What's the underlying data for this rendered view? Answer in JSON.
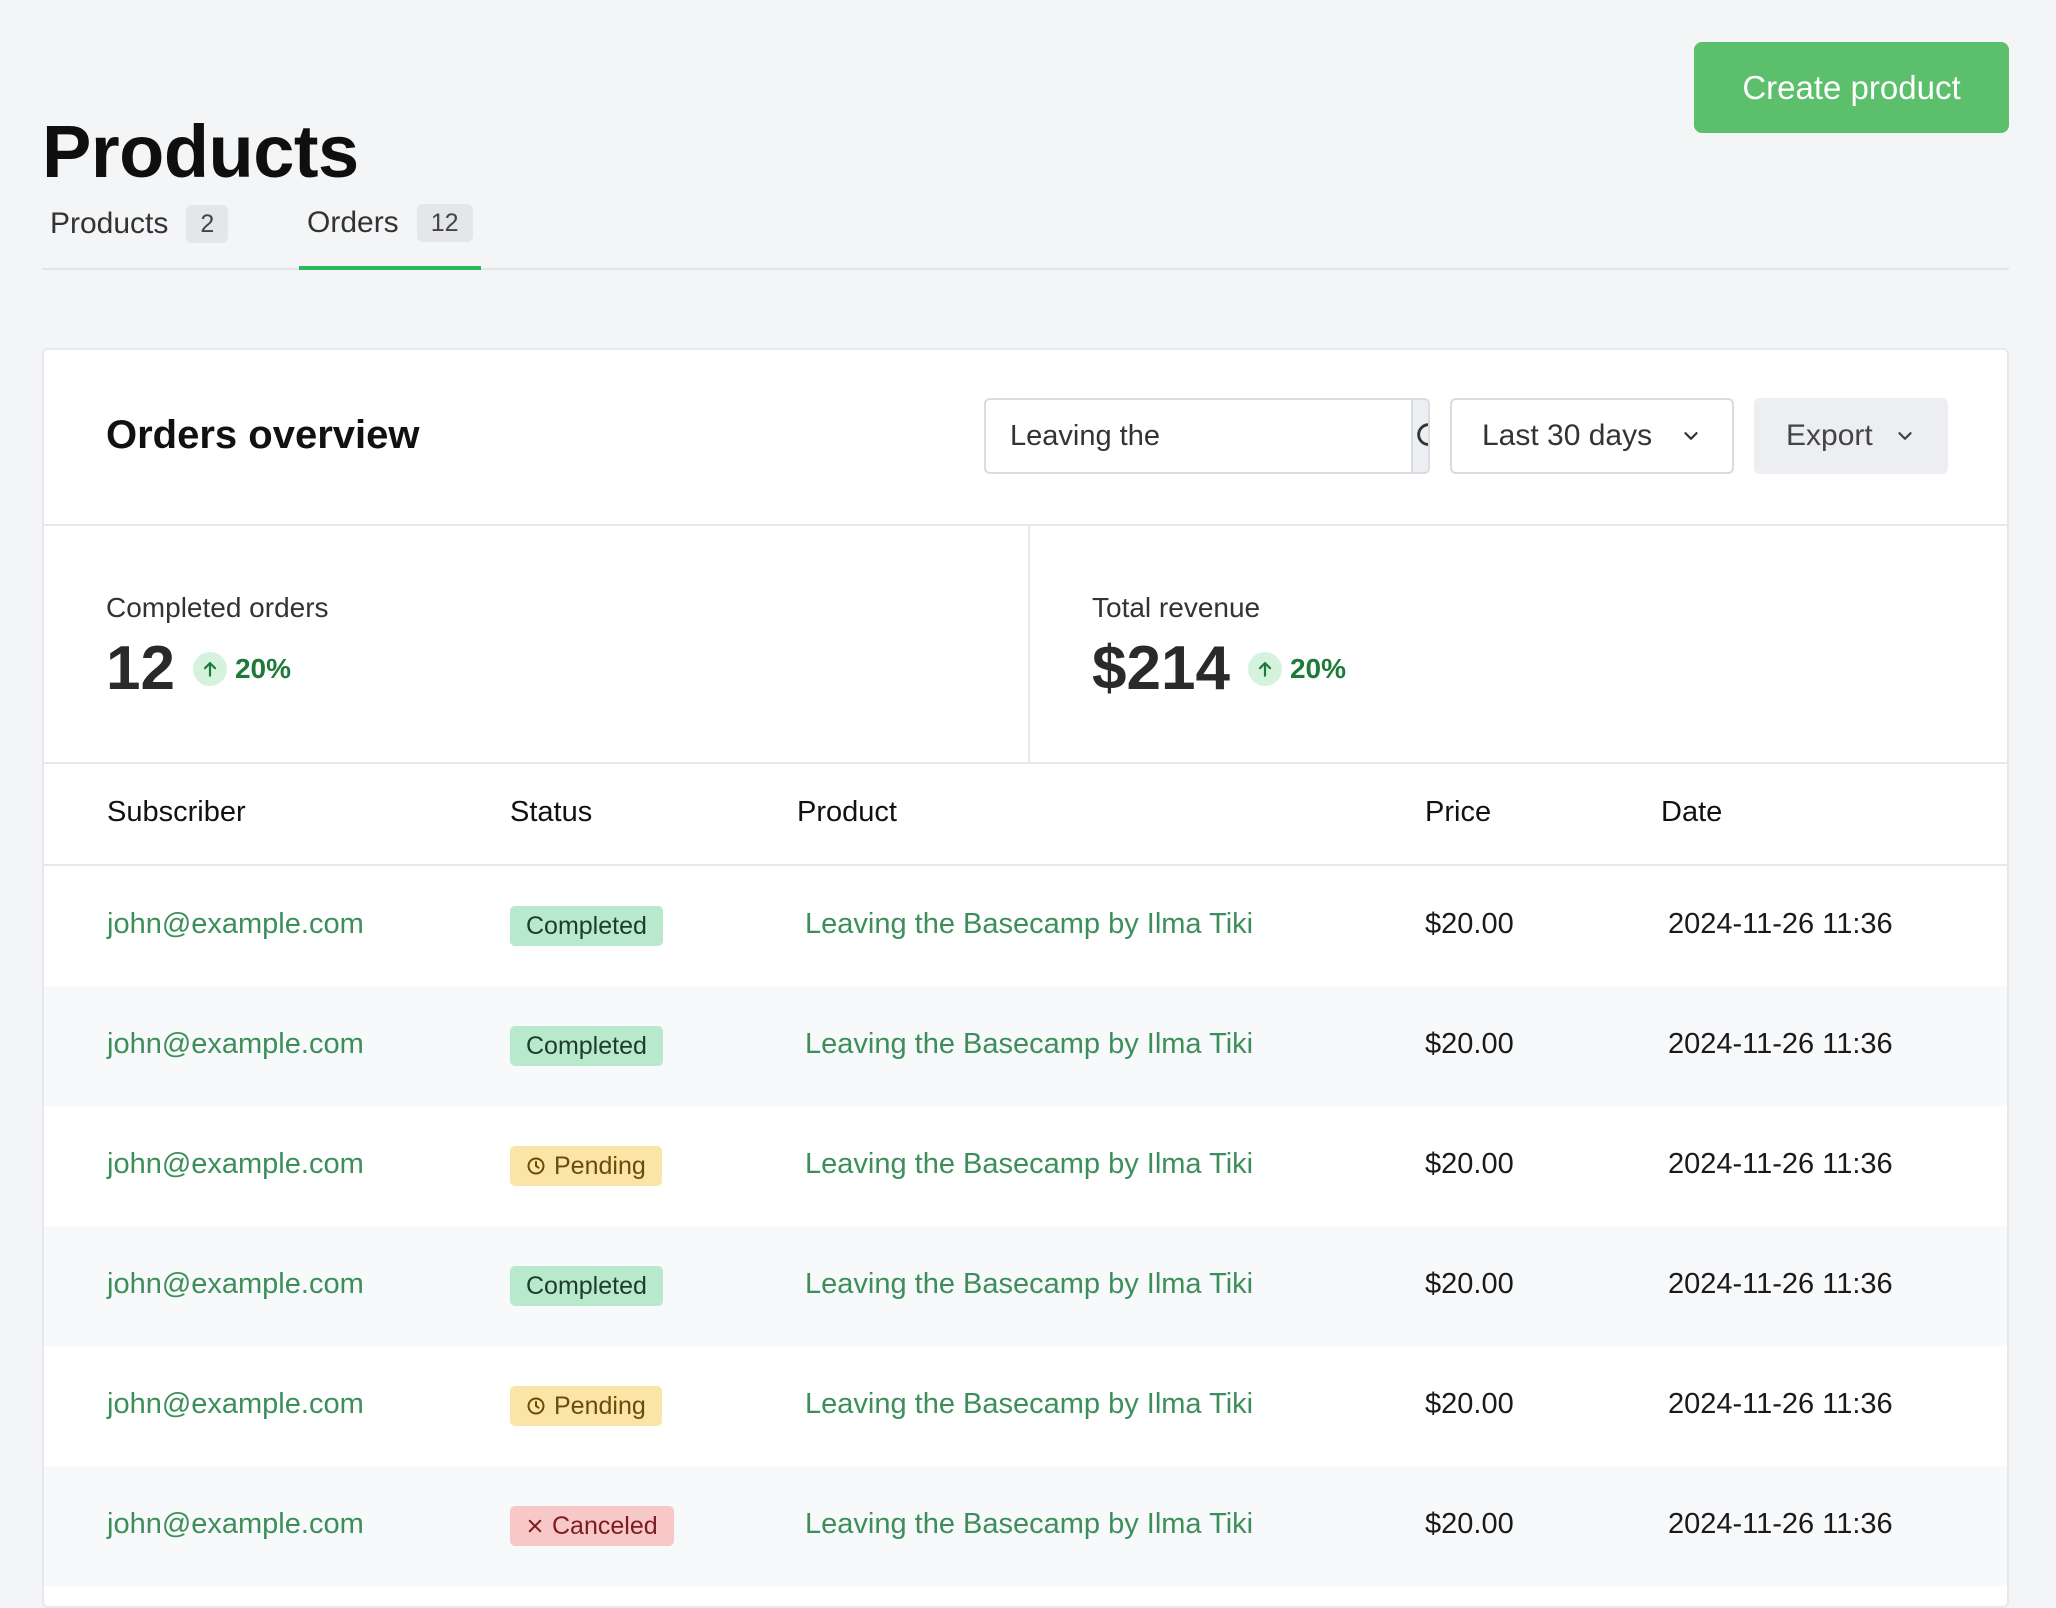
{
  "page": {
    "title": "Products"
  },
  "actions": {
    "create_label": "Create product"
  },
  "tabs": [
    {
      "label": "Products",
      "count": "2"
    },
    {
      "label": "Orders",
      "count": "12"
    }
  ],
  "overview": {
    "title": "Orders overview",
    "search": {
      "value": "Leaving the"
    },
    "range": {
      "selected": "Last 30 days"
    },
    "export_label": "Export"
  },
  "stats": {
    "completed": {
      "label": "Completed orders",
      "value": "12",
      "delta": "20%"
    },
    "revenue": {
      "label": "Total revenue",
      "value": "$214",
      "delta": "20%"
    }
  },
  "table": {
    "columns": {
      "subscriber": "Subscriber",
      "status": "Status",
      "product": "Product",
      "price": "Price",
      "date": "Date"
    },
    "rows": [
      {
        "subscriber": "john@example.com",
        "status": "Completed",
        "status_kind": "completed",
        "product": "Leaving the Basecamp by Ilma Tiki",
        "price": "$20.00",
        "date": "2024-11-26 11:36"
      },
      {
        "subscriber": "john@example.com",
        "status": "Completed",
        "status_kind": "completed",
        "product": "Leaving the Basecamp by Ilma Tiki",
        "price": "$20.00",
        "date": "2024-11-26 11:36"
      },
      {
        "subscriber": "john@example.com",
        "status": "Pending",
        "status_kind": "pending",
        "product": "Leaving the Basecamp by Ilma Tiki",
        "price": "$20.00",
        "date": "2024-11-26 11:36"
      },
      {
        "subscriber": "john@example.com",
        "status": "Completed",
        "status_kind": "completed",
        "product": "Leaving the Basecamp by Ilma Tiki",
        "price": "$20.00",
        "date": "2024-11-26 11:36"
      },
      {
        "subscriber": "john@example.com",
        "status": "Pending",
        "status_kind": "pending",
        "product": "Leaving the Basecamp by Ilma Tiki",
        "price": "$20.00",
        "date": "2024-11-26 11:36"
      },
      {
        "subscriber": "john@example.com",
        "status": "Canceled",
        "status_kind": "canceled",
        "product": "Leaving the Basecamp by Ilma Tiki",
        "price": "$20.00",
        "date": "2024-11-26 11:36"
      }
    ]
  },
  "icons": {
    "search": "search-icon",
    "chevron": "chevron-down-icon",
    "delta": "arrow-up-icon",
    "pending": "clock-icon",
    "canceled": "x-icon"
  },
  "colors": {
    "accent": "#2eb85c",
    "button": "#5bbf6c",
    "link": "#3c8f5a"
  }
}
